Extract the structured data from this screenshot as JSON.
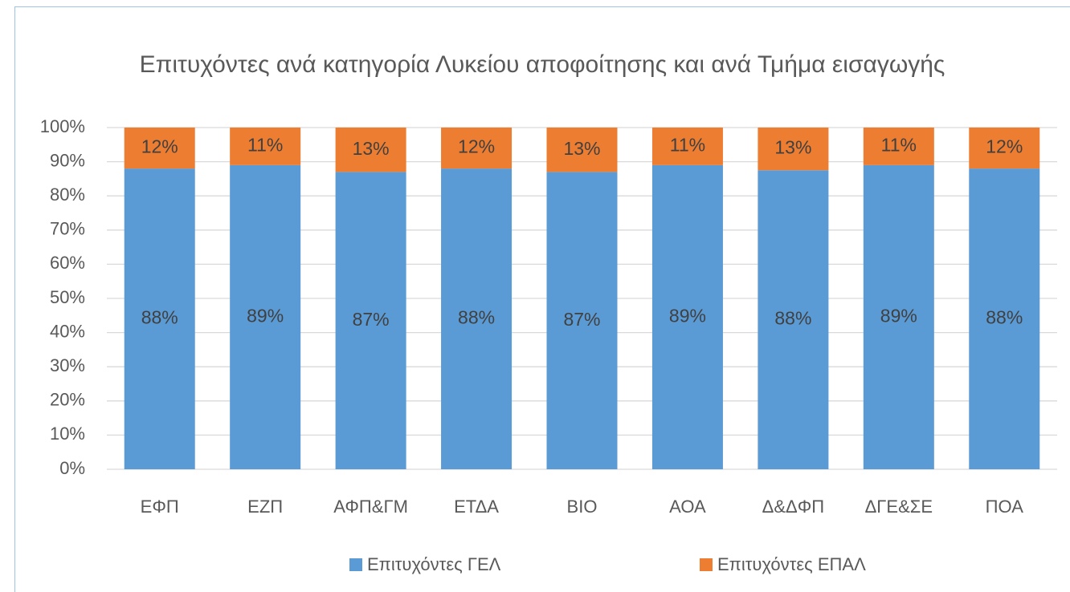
{
  "chart_data": {
    "type": "bar",
    "stacked": true,
    "title": "Επιτυχόντες ανά κατηγορία Λυκείου αποφοίτησης και ανά Τμήμα εισαγωγής",
    "categories": [
      "ΕΦΠ",
      "ΕΖΠ",
      "ΑΦΠ&ΓΜ",
      "ΕΤΔΑ",
      "ΒΙΟ",
      "ΑΟΑ",
      "Δ&ΔΦΠ",
      "ΔΓΕ&ΣΕ",
      "ΠΟΑ"
    ],
    "series": [
      {
        "name": "Επιτυχόντες ΓΕΛ",
        "color": "#5b9bd5",
        "values": [
          88,
          89,
          87,
          88,
          87,
          89,
          87.5,
          89,
          88
        ],
        "value_labels": [
          "88%",
          "89%",
          "87%",
          "88%",
          "87%",
          "89%",
          "88%",
          "89%",
          "88%"
        ]
      },
      {
        "name": "Επιτυχόντες ΕΠΑΛ",
        "color": "#ed7d31",
        "values": [
          12,
          11,
          13,
          12,
          13,
          11,
          12.5,
          11,
          12
        ],
        "value_labels": [
          "12%",
          "11%",
          "13%",
          "12%",
          "13%",
          "11%",
          "13%",
          "11%",
          "12%"
        ]
      }
    ],
    "ylim": [
      0,
      100
    ],
    "yticks": [
      {
        "value": 0,
        "label": "0%"
      },
      {
        "value": 10,
        "label": "10%"
      },
      {
        "value": 20,
        "label": "20%"
      },
      {
        "value": 30,
        "label": "30%"
      },
      {
        "value": 40,
        "label": "40%"
      },
      {
        "value": 50,
        "label": "50%"
      },
      {
        "value": 60,
        "label": "60%"
      },
      {
        "value": 70,
        "label": "70%"
      },
      {
        "value": 80,
        "label": "80%"
      },
      {
        "value": 90,
        "label": "90%"
      },
      {
        "value": 100,
        "label": "100%"
      }
    ],
    "grid": true,
    "legend": "bottom"
  }
}
